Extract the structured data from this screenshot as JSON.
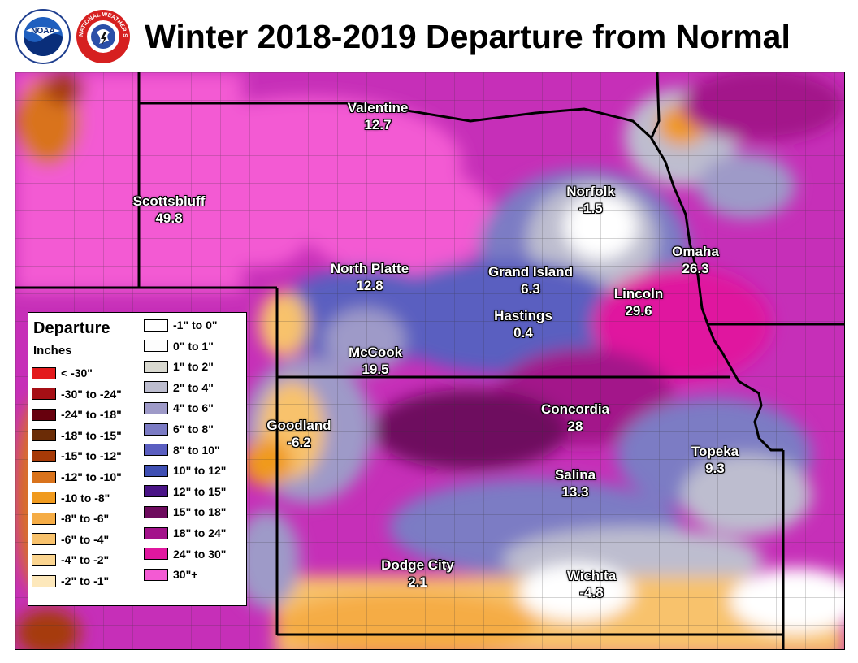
{
  "title": "Winter 2018-2019 Departure from Normal",
  "logos": {
    "noaa": {
      "text": "NOAA",
      "icon": "noaa-logo"
    },
    "nws": {
      "text": "NATIONAL WEATHER SERVICE",
      "icon": "nws-logo"
    }
  },
  "legend": {
    "title": "Departure",
    "units": "Inches",
    "items": [
      {
        "label": "< -30\"",
        "color": "#e31a1c"
      },
      {
        "label": "-30\" to -24\"",
        "color": "#a50f15"
      },
      {
        "label": "-24\" to -18\"",
        "color": "#67000d"
      },
      {
        "label": "-18\" to -15\"",
        "color": "#6b2c06"
      },
      {
        "label": "-15\" to -12\"",
        "color": "#a63a07"
      },
      {
        "label": "-12\" to -10\"",
        "color": "#d9731c"
      },
      {
        "label": "-10 to -8\"",
        "color": "#f09a1e"
      },
      {
        "label": "-8\" to -6\"",
        "color": "#f5ac45"
      },
      {
        "label": "-6\" to -4\"",
        "color": "#f8c26c"
      },
      {
        "label": "-4\" to -2\"",
        "color": "#fbd590"
      },
      {
        "label": "-2\" to -1\"",
        "color": "#fde8bb"
      },
      {
        "label": "-1\" to 0\"",
        "color": "#ffffff"
      },
      {
        "label": "0\" to 1\"",
        "color": "#fdfdfd"
      },
      {
        "label": "1\" to 2\"",
        "color": "#d9d9d0"
      },
      {
        "label": "2\" to 4\"",
        "color": "#bdbdcf"
      },
      {
        "label": "4\" to 6\"",
        "color": "#9e9ac8"
      },
      {
        "label": "6\" to 8\"",
        "color": "#7b7bc4"
      },
      {
        "label": "8\" to 10\"",
        "color": "#5a5ec0"
      },
      {
        "label": "10\" to 12\"",
        "color": "#3f4fb3"
      },
      {
        "label": "12\" to 15\"",
        "color": "#4a1486"
      },
      {
        "label": "15\" to 18\"",
        "color": "#6e0b5e"
      },
      {
        "label": "18\" to 24\"",
        "color": "#a3128a"
      },
      {
        "label": "24\" to 30\"",
        "color": "#e0179f"
      },
      {
        "label": "30\"+",
        "color": "#f35ad3"
      }
    ]
  },
  "cities": [
    {
      "id": "valentine",
      "name": "Valentine",
      "value": "12.7"
    },
    {
      "id": "scottsbluff",
      "name": "Scottsbluff",
      "value": "49.8"
    },
    {
      "id": "norfolk",
      "name": "Norfolk",
      "value": "-1.5"
    },
    {
      "id": "omaha",
      "name": "Omaha",
      "value": "26.3"
    },
    {
      "id": "north-platte",
      "name": "North Platte",
      "value": "12.8"
    },
    {
      "id": "grand-island",
      "name": "Grand Island",
      "value": "6.3"
    },
    {
      "id": "lincoln",
      "name": "Lincoln",
      "value": "29.6"
    },
    {
      "id": "hastings",
      "name": "Hastings",
      "value": "0.4"
    },
    {
      "id": "mccook",
      "name": "McCook",
      "value": "19.5"
    },
    {
      "id": "concordia",
      "name": "Concordia",
      "value": "28"
    },
    {
      "id": "goodland",
      "name": "Goodland",
      "value": "-6.2"
    },
    {
      "id": "topeka",
      "name": "Topeka",
      "value": "9.3"
    },
    {
      "id": "salina",
      "name": "Salina",
      "value": "13.3"
    },
    {
      "id": "dodge-city",
      "name": "Dodge City",
      "value": "2.1"
    },
    {
      "id": "wichita",
      "name": "Wichita",
      "value": "-4.8"
    }
  ]
}
